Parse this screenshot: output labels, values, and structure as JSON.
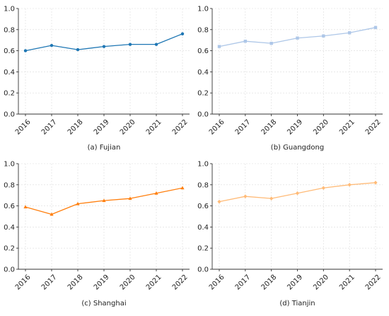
{
  "chart_data": [
    {
      "type": "line",
      "caption": "(a) Fujian",
      "categories": [
        "2016",
        "2017",
        "2018",
        "2019",
        "2020",
        "2021",
        "2022"
      ],
      "series": [
        {
          "values": [
            0.6,
            0.65,
            0.61,
            0.64,
            0.66,
            0.66,
            0.76
          ],
          "color": "#1f77b4",
          "marker": "circle"
        }
      ],
      "ylim": [
        0,
        1.0
      ],
      "yticks": [
        "0.0",
        "0.2",
        "0.4",
        "0.6",
        "0.8",
        "1.0"
      ],
      "grid": true
    },
    {
      "type": "line",
      "caption": "(b) Guangdong",
      "categories": [
        "2016",
        "2017",
        "2018",
        "2019",
        "2020",
        "2021",
        "2022"
      ],
      "series": [
        {
          "values": [
            0.64,
            0.69,
            0.67,
            0.72,
            0.74,
            0.77,
            0.82
          ],
          "color": "#aec7e8",
          "marker": "square"
        }
      ],
      "ylim": [
        0,
        1.0
      ],
      "yticks": [
        "0.0",
        "0.2",
        "0.4",
        "0.6",
        "0.8",
        "1.0"
      ],
      "grid": true
    },
    {
      "type": "line",
      "caption": "(c) Shanghai",
      "categories": [
        "2016",
        "2017",
        "2018",
        "2019",
        "2020",
        "2021",
        "2022"
      ],
      "series": [
        {
          "values": [
            0.59,
            0.52,
            0.62,
            0.65,
            0.67,
            0.72,
            0.77
          ],
          "color": "#ff7f0e",
          "marker": "triangle"
        }
      ],
      "ylim": [
        0,
        1.0
      ],
      "yticks": [
        "0.0",
        "0.2",
        "0.4",
        "0.6",
        "0.8",
        "1.0"
      ],
      "grid": true
    },
    {
      "type": "line",
      "caption": "(d) Tianjin",
      "categories": [
        "2016",
        "2017",
        "2018",
        "2019",
        "2020",
        "2021",
        "2022"
      ],
      "series": [
        {
          "values": [
            0.64,
            0.69,
            0.67,
            0.72,
            0.77,
            0.8,
            0.82
          ],
          "color": "#ffbb78",
          "marker": "diamond"
        }
      ],
      "ylim": [
        0,
        1.0
      ],
      "yticks": [
        "0.0",
        "0.2",
        "0.4",
        "0.6",
        "0.8",
        "1.0"
      ],
      "grid": true
    }
  ]
}
